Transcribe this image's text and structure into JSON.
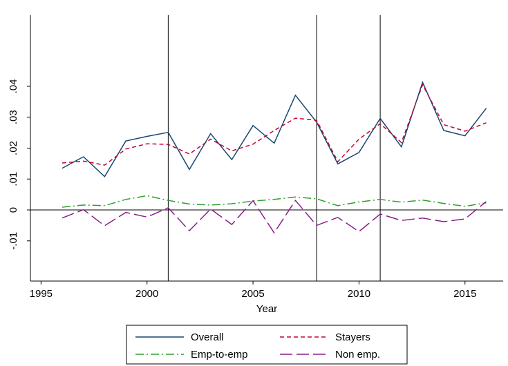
{
  "chart_data": {
    "type": "line",
    "title": "",
    "xlabel": "Year",
    "ylabel": "",
    "xlim": [
      1994.5,
      2016.8
    ],
    "ylim": [
      -0.023,
      0.063
    ],
    "xticks": [
      1995,
      2000,
      2005,
      2010,
      2015
    ],
    "xtick_labels": [
      "1995",
      "2000",
      "2005",
      "2010",
      "2015"
    ],
    "yticks": [
      -0.01,
      0,
      0.01,
      0.02,
      0.03,
      0.04
    ],
    "ytick_labels": [
      "-.01",
      "0",
      ".01",
      ".02",
      ".03",
      ".04"
    ],
    "reference_lines": {
      "horizontal": [
        0
      ],
      "vertical": [
        2001,
        2008,
        2011
      ]
    },
    "grid": false,
    "legend": {
      "position": "bottom",
      "columns": 2
    },
    "x": [
      1996,
      1997,
      1998,
      1999,
      2000,
      2001,
      2002,
      2003,
      2004,
      2005,
      2006,
      2007,
      2008,
      2009,
      2010,
      2011,
      2012,
      2013,
      2014,
      2015,
      2016
    ],
    "series": [
      {
        "name": "Overall",
        "color": "#1a476f",
        "dash": "solid",
        "values": [
          0.0135,
          0.0172,
          0.0108,
          0.0223,
          0.0238,
          0.0251,
          0.0131,
          0.0247,
          0.0163,
          0.0273,
          0.0216,
          0.0371,
          0.0284,
          0.0149,
          0.0186,
          0.0296,
          0.0204,
          0.0413,
          0.0257,
          0.024,
          0.0329
        ]
      },
      {
        "name": "Stayers",
        "color": "#c10534",
        "dash": "6,4",
        "values": [
          0.0152,
          0.0158,
          0.0145,
          0.0197,
          0.0214,
          0.0212,
          0.0181,
          0.0229,
          0.0191,
          0.0213,
          0.0257,
          0.0297,
          0.029,
          0.0156,
          0.0229,
          0.0279,
          0.0218,
          0.0405,
          0.0276,
          0.0255,
          0.0282
        ]
      },
      {
        "name": "Emp-to-emp",
        "color": "#2ca02c",
        "dash": "12,4,2,4",
        "values": [
          0.0009,
          0.0016,
          0.0014,
          0.0034,
          0.0046,
          0.0031,
          0.0019,
          0.0016,
          0.002,
          0.0029,
          0.0034,
          0.0042,
          0.0036,
          0.0014,
          0.0026,
          0.0034,
          0.0025,
          0.0032,
          0.0021,
          0.0012,
          0.0023
        ]
      },
      {
        "name": "Non emp.",
        "color": "#8b1f8b",
        "dash": "18,6",
        "values": [
          -0.0026,
          0.0001,
          -0.0051,
          -0.0008,
          -0.0023,
          0.0007,
          -0.0067,
          0.0003,
          -0.0047,
          0.003,
          -0.0074,
          0.0031,
          -0.005,
          -0.0024,
          -0.007,
          -0.0013,
          -0.0034,
          -0.0026,
          -0.0038,
          -0.0029,
          0.0027
        ]
      }
    ]
  }
}
